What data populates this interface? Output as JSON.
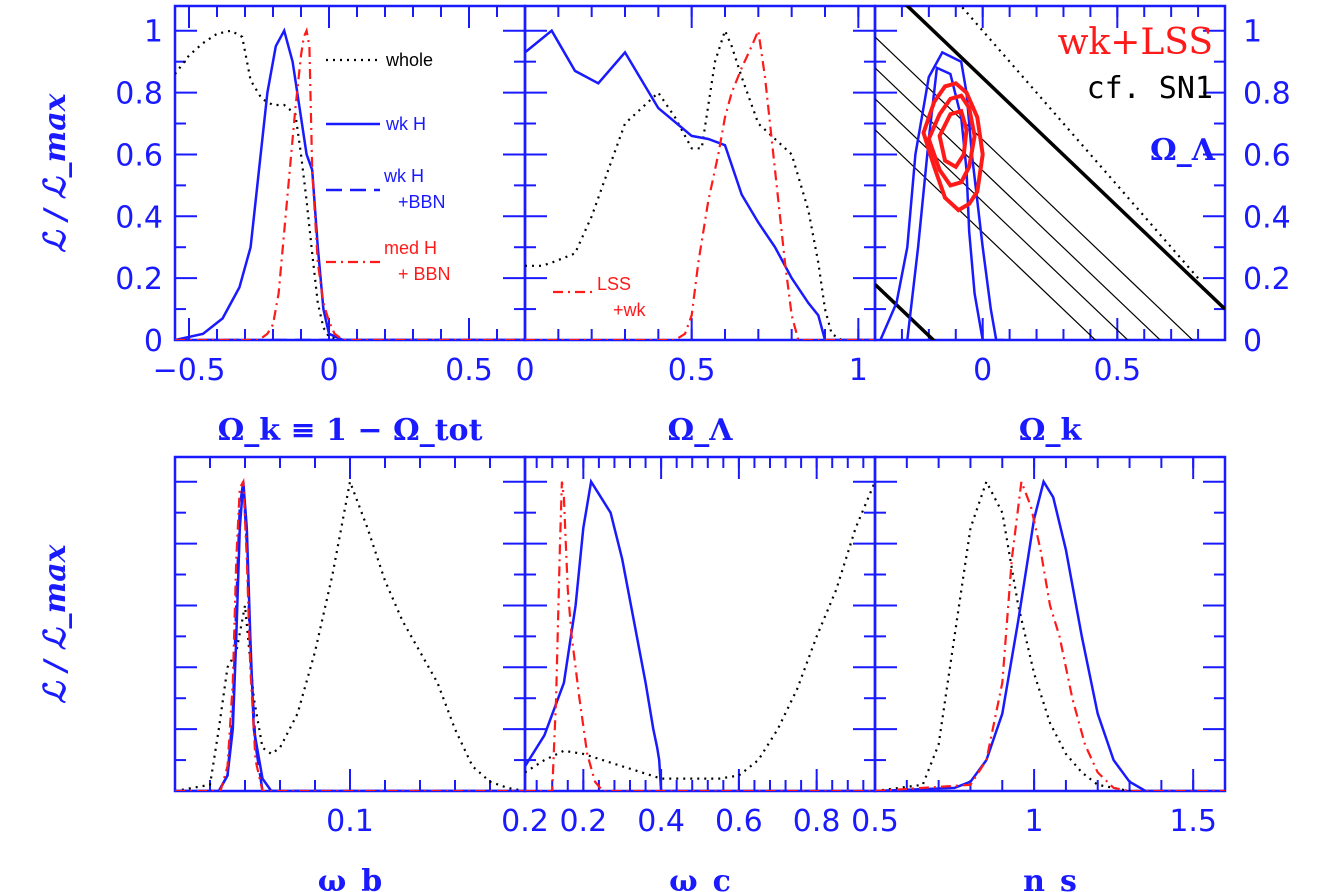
{
  "chart_data": [
    {
      "type": "line",
      "panel": "top-left",
      "xlabel": "Ω_k ≡ 1 − Ω_tot",
      "ylabel": "ℒ / ℒ_max",
      "xlim": [
        -0.55,
        0.7
      ],
      "ylim": [
        0,
        1.08
      ],
      "xticks": [
        -0.5,
        0,
        0.5
      ],
      "xtick_labels": [
        "−0.5",
        "0",
        "0.5"
      ],
      "yticks": [
        0,
        0.2,
        0.4,
        0.6,
        0.8,
        1
      ],
      "ytick_labels": [
        "0",
        "0.2",
        "0.4",
        "0.6",
        "0.8",
        "1"
      ],
      "legend_position": "top-right",
      "series": [
        {
          "name": "whole",
          "style": "dotted",
          "color": "#000000",
          "x": [
            -0.55,
            -0.5,
            -0.45,
            -0.4,
            -0.35,
            -0.31,
            -0.28,
            -0.24,
            -0.2,
            -0.16,
            -0.12,
            -0.1,
            -0.08,
            -0.06,
            -0.04,
            -0.02,
            0,
            0.05,
            0.7
          ],
          "y": [
            0.86,
            0.92,
            0.96,
            0.99,
            1.0,
            0.98,
            0.84,
            0.78,
            0.76,
            0.76,
            0.73,
            0.6,
            0.45,
            0.28,
            0.12,
            0.04,
            0.01,
            0,
            0
          ]
        },
        {
          "name": "wk H",
          "style": "solid",
          "color": "#1a1aff",
          "x": [
            -0.55,
            -0.45,
            -0.38,
            -0.32,
            -0.28,
            -0.25,
            -0.22,
            -0.19,
            -0.16,
            -0.13,
            -0.1,
            -0.08,
            -0.06,
            -0.04,
            -0.02,
            0,
            0.05,
            0.7
          ],
          "y": [
            0,
            0.02,
            0.07,
            0.17,
            0.3,
            0.55,
            0.8,
            0.95,
            1.0,
            0.9,
            0.72,
            0.6,
            0.55,
            0.3,
            0.1,
            0.02,
            0,
            0
          ]
        },
        {
          "name": "wk H +BBN",
          "style": "dashed",
          "color": "#1a1aff",
          "x": [
            -0.55,
            0.1,
            0.2,
            0.3,
            0.45,
            0.7
          ],
          "y": [
            0,
            0,
            0,
            0,
            0,
            0
          ]
        },
        {
          "name": "med H + BBN",
          "style": "dashdot",
          "color": "#ff1a1a",
          "x": [
            -0.55,
            -0.25,
            -0.22,
            -0.2,
            -0.18,
            -0.16,
            -0.14,
            -0.12,
            -0.1,
            -0.09,
            -0.08,
            -0.07,
            -0.06,
            -0.04,
            -0.02,
            0,
            0.02,
            0.05,
            0.7
          ],
          "y": [
            0,
            0,
            0.02,
            0.05,
            0.15,
            0.35,
            0.55,
            0.75,
            0.92,
            0.98,
            1.0,
            0.95,
            0.55,
            0.25,
            0.12,
            0.06,
            0.02,
            0,
            0
          ]
        }
      ]
    },
    {
      "type": "line",
      "panel": "top-middle",
      "xlabel": "Ω_Λ",
      "xlim": [
        0,
        1.05
      ],
      "ylim": [
        0,
        1.08
      ],
      "xticks": [
        0,
        0.5,
        1
      ],
      "xtick_labels": [
        "0",
        "0.5",
        "1"
      ],
      "annotation": {
        "text": [
          "LSS",
          "+wk"
        ],
        "color": "#ff1a1a"
      },
      "series": [
        {
          "name": "whole",
          "style": "dotted",
          "color": "#000000",
          "x": [
            0,
            0.05,
            0.08,
            0.15,
            0.2,
            0.25,
            0.3,
            0.35,
            0.4,
            0.45,
            0.5,
            0.53,
            0.57,
            0.6,
            0.62,
            0.65,
            0.7,
            0.75,
            0.8,
            0.85,
            0.88,
            0.9,
            0.92,
            0.95,
            1.05
          ],
          "y": [
            0.24,
            0.24,
            0.25,
            0.28,
            0.4,
            0.55,
            0.7,
            0.75,
            0.8,
            0.72,
            0.62,
            0.62,
            0.9,
            1.0,
            0.95,
            0.85,
            0.7,
            0.65,
            0.6,
            0.42,
            0.25,
            0.1,
            0.02,
            0,
            0
          ]
        },
        {
          "name": "wk H",
          "style": "solid",
          "color": "#1a1aff",
          "x": [
            0,
            0.08,
            0.15,
            0.22,
            0.3,
            0.4,
            0.5,
            0.55,
            0.6,
            0.65,
            0.7,
            0.75,
            0.8,
            0.85,
            0.88,
            0.9,
            1.05
          ],
          "y": [
            0.93,
            1.0,
            0.87,
            0.83,
            0.93,
            0.75,
            0.66,
            0.65,
            0.63,
            0.47,
            0.38,
            0.3,
            0.2,
            0.12,
            0.08,
            0,
            0
          ]
        },
        {
          "name": "med H + BBN",
          "style": "dashdot",
          "color": "#ff1a1a",
          "x": [
            0,
            0.45,
            0.48,
            0.5,
            0.52,
            0.55,
            0.58,
            0.6,
            0.62,
            0.65,
            0.68,
            0.7,
            0.72,
            0.75,
            0.78,
            0.8,
            0.82,
            1.05
          ],
          "y": [
            0,
            0,
            0.02,
            0.08,
            0.25,
            0.45,
            0.6,
            0.72,
            0.8,
            0.88,
            0.95,
            1.0,
            0.85,
            0.55,
            0.25,
            0.08,
            0,
            0
          ]
        }
      ]
    },
    {
      "type": "contour",
      "panel": "top-right",
      "title_lines": [
        "wk+LSS",
        "cf. SN1"
      ],
      "title_colors": [
        "#ff1a1a",
        "#000000"
      ],
      "xlabel": "Ω_k",
      "ylabel": "Ω_Λ",
      "xlim": [
        -0.4,
        0.9
      ],
      "ylim": [
        0,
        1.08
      ],
      "xticks": [
        0,
        0.5
      ],
      "xtick_labels": [
        "0",
        "0.5"
      ],
      "yticks": [
        0,
        0.2,
        0.4,
        0.6,
        0.8,
        1
      ],
      "ytick_labels": [
        "0",
        "0.2",
        "0.4",
        "0.6",
        "0.8",
        "1"
      ],
      "blue_contours": [
        {
          "ok": [
            -0.38,
            -0.32,
            -0.28,
            -0.25,
            -0.2,
            -0.15,
            -0.08,
            -0.06,
            -0.05,
            -0.04,
            -0.02,
            0,
            0.03,
            0.05,
            0.06,
            0.08
          ],
          "ol": [
            0,
            0.12,
            0.3,
            0.6,
            0.85,
            0.93,
            0.9,
            0.8,
            0.7,
            0.6,
            0.45,
            0.3,
            0.1,
            0,
            0,
            0
          ]
        },
        {
          "ok": [
            -0.28,
            -0.24,
            -0.2,
            -0.17,
            -0.12,
            -0.08,
            -0.06,
            -0.05,
            -0.03,
            0
          ],
          "ol": [
            0,
            0.3,
            0.65,
            0.88,
            0.86,
            0.72,
            0.55,
            0.35,
            0.15,
            0
          ]
        }
      ],
      "red_contours": [
        {
          "ok": [
            -0.22,
            -0.18,
            -0.14,
            -0.1,
            -0.06,
            -0.02,
            0,
            -0.02,
            -0.05,
            -0.09,
            -0.14,
            -0.18,
            -0.22
          ],
          "ol": [
            0.67,
            0.77,
            0.82,
            0.83,
            0.8,
            0.72,
            0.6,
            0.48,
            0.44,
            0.42,
            0.46,
            0.56,
            0.67
          ]
        },
        {
          "ok": [
            -0.2,
            -0.16,
            -0.12,
            -0.08,
            -0.05,
            -0.03,
            -0.05,
            -0.08,
            -0.12,
            -0.16,
            -0.2
          ],
          "ol": [
            0.65,
            0.73,
            0.78,
            0.79,
            0.75,
            0.66,
            0.56,
            0.51,
            0.5,
            0.55,
            0.65
          ]
        },
        {
          "ok": [
            -0.16,
            -0.12,
            -0.08,
            -0.06,
            -0.07,
            -0.1,
            -0.14,
            -0.16
          ],
          "ol": [
            0.66,
            0.73,
            0.74,
            0.68,
            0.6,
            0.56,
            0.58,
            0.66
          ]
        }
      ],
      "sn_lines": [
        {
          "ok": [
            -0.4,
            0.9
          ],
          "ol": [
            0.18,
            -0.9
          ],
          "width": "thick"
        },
        {
          "ok": [
            -0.4,
            0.9
          ],
          "ol": [
            1.18,
            0.1
          ],
          "width": "thick"
        },
        {
          "ok": [
            -0.4,
            0.9
          ],
          "ol": [
            0.98,
            -0.1
          ],
          "width": "thin"
        },
        {
          "ok": [
            -0.4,
            0.9
          ],
          "ol": [
            0.88,
            -0.2
          ],
          "width": "thin"
        },
        {
          "ok": [
            -0.4,
            0.9
          ],
          "ol": [
            0.78,
            -0.3
          ],
          "width": "thin"
        },
        {
          "ok": [
            -0.4,
            0.9
          ],
          "ol": [
            0.68,
            -0.4
          ],
          "width": "thin"
        }
      ]
    },
    {
      "type": "line",
      "panel": "bottom-left",
      "xlabel": "ω_b",
      "ylabel": "ℒ / ℒ_max",
      "xlim": [
        0,
        0.2
      ],
      "ylim": [
        0,
        1.08
      ],
      "xticks": [
        0.1,
        0.2
      ],
      "xtick_labels": [
        "0.1",
        "0.2"
      ],
      "series": [
        {
          "name": "whole",
          "style": "dotted",
          "color": "#000000",
          "x": [
            0,
            0.02,
            0.025,
            0.03,
            0.035,
            0.04,
            0.045,
            0.05,
            0.055,
            0.06,
            0.07,
            0.08,
            0.09,
            0.1,
            0.11,
            0.12,
            0.13,
            0.14,
            0.15,
            0.16,
            0.17,
            0.18,
            0.19,
            0.2
          ],
          "y": [
            0,
            0.02,
            0.2,
            0.4,
            0.45,
            0.6,
            0.3,
            0.14,
            0.12,
            0.14,
            0.25,
            0.45,
            0.7,
            1.0,
            0.85,
            0.68,
            0.55,
            0.45,
            0.35,
            0.2,
            0.08,
            0.03,
            0.01,
            0
          ]
        },
        {
          "name": "wk H",
          "style": "solid",
          "color": "#1a1aff",
          "x": [
            0,
            0.025,
            0.03,
            0.033,
            0.035,
            0.037,
            0.039,
            0.041,
            0.043,
            0.045,
            0.05,
            0.055,
            0.2
          ],
          "y": [
            0,
            0,
            0.05,
            0.2,
            0.5,
            0.85,
            1.0,
            0.85,
            0.5,
            0.2,
            0.04,
            0,
            0
          ]
        },
        {
          "name": "wk H +BBN",
          "style": "dashed",
          "color": "#1a1aff",
          "x": [
            0,
            0.025,
            0.03,
            0.033,
            0.035,
            0.037,
            0.039,
            0.041,
            0.043,
            0.046,
            0.05,
            0.2
          ],
          "y": [
            0,
            0,
            0.05,
            0.25,
            0.6,
            0.92,
            1.0,
            0.8,
            0.45,
            0.15,
            0,
            0
          ]
        },
        {
          "name": "med H + BBN",
          "style": "dashdot",
          "color": "#ff1a1a",
          "x": [
            0,
            0.026,
            0.03,
            0.033,
            0.035,
            0.037,
            0.039,
            0.041,
            0.043,
            0.046,
            0.05,
            0.2
          ],
          "y": [
            0,
            0,
            0.08,
            0.35,
            0.75,
            0.98,
            1.0,
            0.75,
            0.4,
            0.1,
            0,
            0
          ]
        }
      ]
    },
    {
      "type": "line",
      "panel": "bottom-middle",
      "xlabel": "ω_c",
      "xlim": [
        0.05,
        0.95
      ],
      "ylim": [
        0,
        1.08
      ],
      "xticks": [
        0.2,
        0.4,
        0.6,
        0.8
      ],
      "xtick_labels": [
        "0.2",
        "0.4",
        "0.6",
        "0.8"
      ],
      "series": [
        {
          "name": "whole",
          "style": "dotted",
          "color": "#000000",
          "x": [
            0.05,
            0.1,
            0.15,
            0.2,
            0.25,
            0.3,
            0.35,
            0.4,
            0.45,
            0.5,
            0.55,
            0.6,
            0.65,
            0.7,
            0.75,
            0.8,
            0.85,
            0.9,
            0.95
          ],
          "y": [
            0.06,
            0.1,
            0.13,
            0.12,
            0.1,
            0.08,
            0.06,
            0.04,
            0.04,
            0.04,
            0.04,
            0.05,
            0.1,
            0.2,
            0.33,
            0.5,
            0.65,
            0.85,
            1.0
          ]
        },
        {
          "name": "wk H",
          "style": "solid",
          "color": "#1a1aff",
          "x": [
            0.05,
            0.1,
            0.15,
            0.18,
            0.2,
            0.22,
            0.24,
            0.27,
            0.3,
            0.33,
            0.36,
            0.38,
            0.39,
            0.395,
            0.4,
            0.95
          ],
          "y": [
            0.08,
            0.18,
            0.35,
            0.6,
            0.85,
            1.0,
            0.96,
            0.9,
            0.75,
            0.55,
            0.35,
            0.2,
            0.14,
            0.1,
            0,
            0
          ]
        },
        {
          "name": "med H + BBN",
          "style": "dashdot",
          "color": "#ff1a1a",
          "x": [
            0.05,
            0.12,
            0.13,
            0.14,
            0.145,
            0.15,
            0.155,
            0.16,
            0.17,
            0.19,
            0.21,
            0.23,
            0.25,
            0.95
          ],
          "y": [
            0,
            0,
            0.3,
            0.8,
            1.0,
            0.95,
            0.8,
            0.65,
            0.5,
            0.3,
            0.12,
            0.03,
            0,
            0
          ]
        }
      ]
    },
    {
      "type": "line",
      "panel": "bottom-right",
      "xlabel": "n_s",
      "xlim": [
        0.5,
        1.6
      ],
      "ylim": [
        0,
        1.08
      ],
      "xticks": [
        0.5,
        1,
        1.5
      ],
      "xtick_labels": [
        "0.5",
        "1",
        "1.5"
      ],
      "series": [
        {
          "name": "whole",
          "style": "dotted",
          "color": "#000000",
          "x": [
            0.5,
            0.65,
            0.7,
            0.75,
            0.8,
            0.85,
            0.9,
            0.95,
            1.0,
            1.05,
            1.1,
            1.15,
            1.2,
            1.3,
            1.6
          ],
          "y": [
            0,
            0.02,
            0.15,
            0.5,
            0.85,
            1.0,
            0.9,
            0.6,
            0.38,
            0.22,
            0.12,
            0.06,
            0.02,
            0,
            0
          ]
        },
        {
          "name": "wk H",
          "style": "solid",
          "color": "#1a1aff",
          "x": [
            0.5,
            0.75,
            0.8,
            0.85,
            0.9,
            0.95,
            1.0,
            1.03,
            1.06,
            1.1,
            1.15,
            1.2,
            1.25,
            1.3,
            1.35,
            1.6
          ],
          "y": [
            0,
            0.01,
            0.03,
            0.1,
            0.25,
            0.55,
            0.88,
            1.0,
            0.95,
            0.78,
            0.5,
            0.25,
            0.1,
            0.03,
            0,
            0
          ]
        },
        {
          "name": "med H + BBN",
          "style": "dashdot",
          "color": "#ff1a1a",
          "x": [
            0.5,
            0.8,
            0.85,
            0.9,
            0.93,
            0.96,
            0.99,
            1.02,
            1.05,
            1.08,
            1.12,
            1.16,
            1.2,
            1.25,
            1.3,
            1.6
          ],
          "y": [
            0,
            0.02,
            0.1,
            0.35,
            0.75,
            1.0,
            0.92,
            0.78,
            0.6,
            0.5,
            0.3,
            0.15,
            0.06,
            0.01,
            0,
            0
          ]
        }
      ]
    }
  ],
  "legend": [
    {
      "label": "whole",
      "style": "dotted"
    },
    {
      "label": "wk H",
      "style": "solid"
    },
    {
      "label_lines": [
        "wk H",
        "+BBN"
      ],
      "style": "dashed"
    },
    {
      "label_lines": [
        "med H",
        "+ BBN"
      ],
      "style": "dashdot"
    }
  ],
  "colors": {
    "axis": "#1a1aff",
    "red": "#ff1a1a",
    "black": "#000000"
  }
}
